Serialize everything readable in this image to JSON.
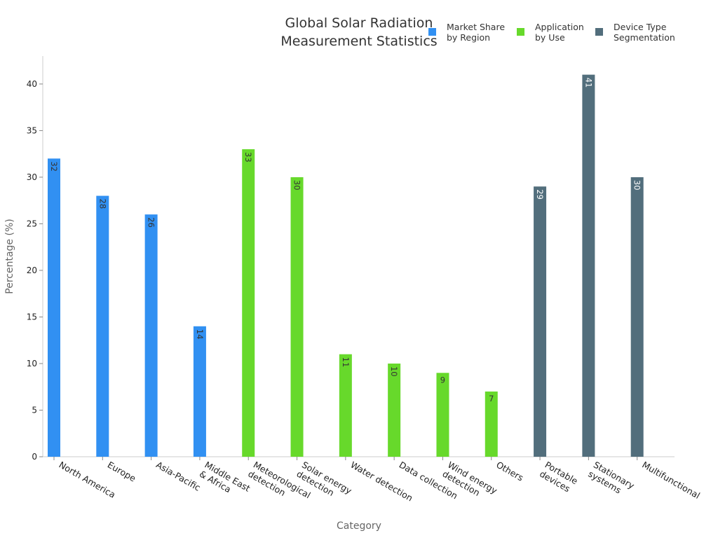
{
  "chart_data": {
    "type": "bar",
    "title_lines": [
      "Global Solar Radiation",
      "Measurement Statistics"
    ],
    "xlabel": "Category",
    "ylabel": "Percentage (%)",
    "ylim": [
      0,
      43
    ],
    "yticks": [
      0,
      5,
      10,
      15,
      20,
      25,
      30,
      35,
      40
    ],
    "grid": false,
    "legend_position": "top-right",
    "categories": [
      [
        "North America"
      ],
      [
        "Europe"
      ],
      [
        "Asia-Pacific"
      ],
      [
        "Middle East",
        "& Africa"
      ],
      [
        "Meteorological",
        "detection"
      ],
      [
        "Solar energy",
        "detection"
      ],
      [
        "Water detection"
      ],
      [
        "Data collection"
      ],
      [
        "Wind energy",
        "detection"
      ],
      [
        "Others"
      ],
      [
        "Portable",
        "devices"
      ],
      [
        "Stationary",
        "systems"
      ],
      [
        "Multifunctional"
      ]
    ],
    "series": [
      {
        "name_lines": [
          "Market Share",
          "by Region"
        ],
        "color": "#3190f2",
        "label_color": "#333333",
        "values": [
          32,
          28,
          26,
          14,
          null,
          null,
          null,
          null,
          null,
          null,
          null,
          null,
          null
        ]
      },
      {
        "name_lines": [
          "Application",
          "by Use"
        ],
        "color": "#67d92b",
        "label_color": "#333333",
        "values": [
          null,
          null,
          null,
          null,
          33,
          30,
          11,
          10,
          9,
          7,
          null,
          null,
          null
        ]
      },
      {
        "name_lines": [
          "Device Type",
          "Segmentation"
        ],
        "color": "#526e7c",
        "label_color": "#ffffff",
        "values": [
          null,
          null,
          null,
          null,
          null,
          null,
          null,
          null,
          null,
          null,
          29,
          41,
          30
        ]
      }
    ]
  }
}
